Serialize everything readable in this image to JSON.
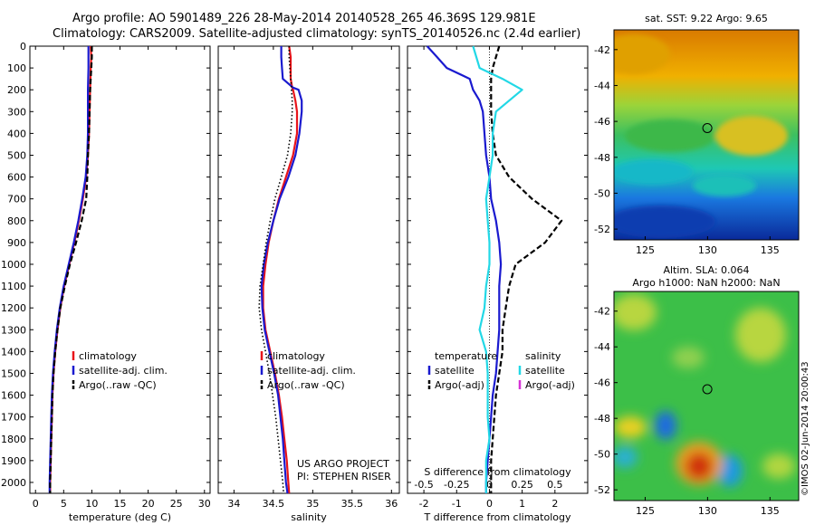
{
  "header": {
    "line1": "Argo profile: AO 5901489_226 28-May-2014 20140528_265 46.369S 129.981E",
    "line2": "Climatology: CARS2009. Satellite-adjusted climatology: synTS_20140526.nc (2.4d earlier)"
  },
  "project": {
    "line1": "US ARGO PROJECT",
    "line2": "PI: STEPHEN RISER"
  },
  "imos_stamp": "©IMOS 02-Jun-2014 20:00:43",
  "colors": {
    "clim": "#e8141a",
    "sat": "#1a1acf",
    "argo": "#000000",
    "sat_s": "#22d8e6",
    "argo_s": "#d633d6"
  },
  "chart_data": [
    {
      "type": "line",
      "id": "temperature",
      "xlabel": "temperature (deg C)",
      "xlim": [
        -1,
        31
      ],
      "xticks": [
        0,
        5,
        10,
        15,
        20,
        25,
        30
      ],
      "ylim": [
        0,
        2050
      ],
      "yticks": [
        0,
        100,
        200,
        300,
        400,
        500,
        600,
        700,
        800,
        900,
        1000,
        1100,
        1200,
        1300,
        1400,
        1500,
        1600,
        1700,
        1800,
        1900,
        2000
      ],
      "legend": [
        "climatology",
        "satellite-adj. clim.",
        "Argo(..raw -QC)"
      ],
      "depth": [
        0,
        50,
        100,
        200,
        300,
        400,
        500,
        600,
        700,
        800,
        900,
        1000,
        1100,
        1200,
        1300,
        1400,
        1500,
        1600,
        1700,
        1800,
        1900,
        2000,
        2050
      ],
      "series": [
        {
          "name": "climatology",
          "color": "clim",
          "values": [
            9.8,
            9.9,
            9.8,
            9.7,
            9.6,
            9.5,
            9.3,
            9.0,
            8.4,
            7.7,
            6.9,
            6.0,
            5.1,
            4.4,
            3.9,
            3.5,
            3.2,
            3.0,
            2.9,
            2.8,
            2.7,
            2.6,
            2.6
          ]
        },
        {
          "name": "satellite-adj. clim.",
          "color": "sat",
          "values": [
            9.4,
            9.4,
            9.4,
            9.3,
            9.3,
            9.3,
            9.2,
            8.9,
            8.3,
            7.6,
            6.8,
            5.9,
            5.0,
            4.3,
            3.8,
            3.4,
            3.1,
            2.9,
            2.8,
            2.7,
            2.6,
            2.5,
            2.5
          ]
        },
        {
          "name": "Argo(..raw -QC)",
          "color": "argo",
          "dash": true,
          "values": [
            10.0,
            10.0,
            9.9,
            9.7,
            9.6,
            9.5,
            9.3,
            9.2,
            9.0,
            8.2,
            7.2,
            6.1,
            5.2,
            4.4,
            3.9,
            3.5,
            3.2,
            3.0,
            2.9,
            2.8,
            2.7,
            2.6,
            2.6
          ]
        }
      ]
    },
    {
      "type": "line",
      "id": "salinity",
      "xlabel": "salinity",
      "xlim": [
        33.8,
        36.1
      ],
      "xticks": [
        34,
        34.5,
        35,
        35.5,
        36
      ],
      "ylim": [
        0,
        2050
      ],
      "legend": [
        "climatology",
        "satellite-adj. clim.",
        "Argo(..raw -QC)"
      ],
      "depth": [
        0,
        50,
        100,
        150,
        190,
        200,
        250,
        300,
        400,
        500,
        600,
        700,
        800,
        900,
        1000,
        1100,
        1200,
        1300,
        1400,
        1500,
        1600,
        1700,
        1800,
        1900,
        2000,
        2050
      ],
      "series": [
        {
          "name": "climatology",
          "color": "clim",
          "values": [
            34.7,
            34.72,
            34.72,
            34.72,
            34.74,
            34.75,
            34.78,
            34.8,
            34.8,
            34.75,
            34.66,
            34.57,
            34.5,
            34.44,
            34.4,
            34.37,
            34.37,
            34.4,
            34.46,
            34.52,
            34.57,
            34.61,
            34.64,
            34.67,
            34.69,
            34.7
          ]
        },
        {
          "name": "satellite-adj. clim.",
          "color": "sat",
          "values": [
            34.6,
            34.6,
            34.61,
            34.62,
            34.75,
            34.82,
            34.86,
            34.86,
            34.83,
            34.78,
            34.69,
            34.58,
            34.5,
            34.43,
            34.38,
            34.35,
            34.36,
            34.39,
            34.45,
            34.51,
            34.56,
            34.59,
            34.62,
            34.64,
            34.66,
            34.68
          ]
        },
        {
          "name": "Argo(..raw -QC)",
          "color": "argo",
          "dash": "dot",
          "values": [
            34.7,
            34.7,
            34.71,
            34.72,
            34.73,
            34.73,
            34.74,
            34.74,
            34.72,
            34.68,
            34.6,
            34.52,
            34.46,
            34.41,
            34.37,
            34.33,
            34.32,
            34.35,
            34.4,
            34.45,
            34.49,
            34.53,
            34.56,
            34.59,
            34.62,
            34.63
          ]
        }
      ]
    },
    {
      "type": "line",
      "id": "difference",
      "xlabel": "T difference from climatology",
      "xlabel_top": "S difference from climatology",
      "xlim": [
        -2.5,
        3.0
      ],
      "xticks": [
        -2,
        -1,
        0,
        1,
        2
      ],
      "xticks_top": [
        "-0.5",
        "-0.25",
        "0",
        "0.25",
        "0.5"
      ],
      "xticks_top_pos": [
        -2,
        -1,
        0,
        1,
        2
      ],
      "ylim": [
        0,
        2050
      ],
      "legend_title_t": "temperature",
      "legend_title_s": "salinity",
      "legend": [
        "satellite",
        "Argo(-adj)",
        "satellite",
        "Argo(-adj)"
      ],
      "depth": [
        0,
        50,
        100,
        150,
        200,
        250,
        300,
        400,
        500,
        600,
        700,
        800,
        900,
        1000,
        1100,
        1200,
        1300,
        1400,
        1500,
        1600,
        1700,
        1800,
        1900,
        2000,
        2050
      ],
      "series": [
        {
          "name": "T satellite",
          "color": "sat",
          "values": [
            -1.9,
            -1.6,
            -1.3,
            -0.6,
            -0.5,
            -0.3,
            -0.2,
            -0.15,
            -0.1,
            0.0,
            0.05,
            0.2,
            0.3,
            0.35,
            0.3,
            0.3,
            0.3,
            0.25,
            0.2,
            0.1,
            0.05,
            0.0,
            -0.05,
            -0.1,
            -0.1
          ]
        },
        {
          "name": "T Argo(-adj)",
          "color": "argo",
          "dash": true,
          "values": [
            0.3,
            0.2,
            0.1,
            0.05,
            0.05,
            0.05,
            0.05,
            0.1,
            0.2,
            0.6,
            1.3,
            2.2,
            1.7,
            0.8,
            0.6,
            0.5,
            0.4,
            0.4,
            0.3,
            0.2,
            0.15,
            0.1,
            0.05,
            0.05,
            0.05
          ]
        },
        {
          "name": "S satellite",
          "color": "sat_s",
          "values": [
            -0.5,
            -0.4,
            -0.3,
            0.4,
            1.0,
            0.6,
            0.2,
            0.1,
            0.1,
            0.0,
            -0.1,
            -0.05,
            0.0,
            0.0,
            -0.1,
            -0.15,
            -0.3,
            -0.1,
            -0.05,
            -0.05,
            -0.05,
            0.0,
            -0.1,
            -0.1,
            -0.1
          ]
        },
        {
          "name": "S Argo(-adj)",
          "color": "argo_s",
          "values": []
        }
      ]
    },
    {
      "type": "heatmap",
      "id": "sst-map",
      "title": "sat. SST: 9.22  Argo: 9.65",
      "xticks": [
        125,
        130,
        135
      ],
      "yticks": [
        -42,
        -44,
        -46,
        -48,
        -50,
        -52
      ],
      "xlim": [
        122.5,
        137.3
      ],
      "ylim": [
        -52.6,
        -40.9
      ],
      "marker": [
        129.98,
        -46.37
      ]
    },
    {
      "type": "heatmap",
      "id": "sla-map",
      "title_line1": "Altim. SLA: 0.064",
      "title_line2": "Argo h1000: NaN h2000: NaN",
      "xticks": [
        125,
        130,
        135
      ],
      "yticks": [
        -42,
        -44,
        -46,
        -48,
        -50,
        -52
      ],
      "xlim": [
        122.5,
        137.3
      ],
      "ylim": [
        -52.6,
        -40.9
      ],
      "marker": [
        129.98,
        -46.37
      ]
    }
  ]
}
